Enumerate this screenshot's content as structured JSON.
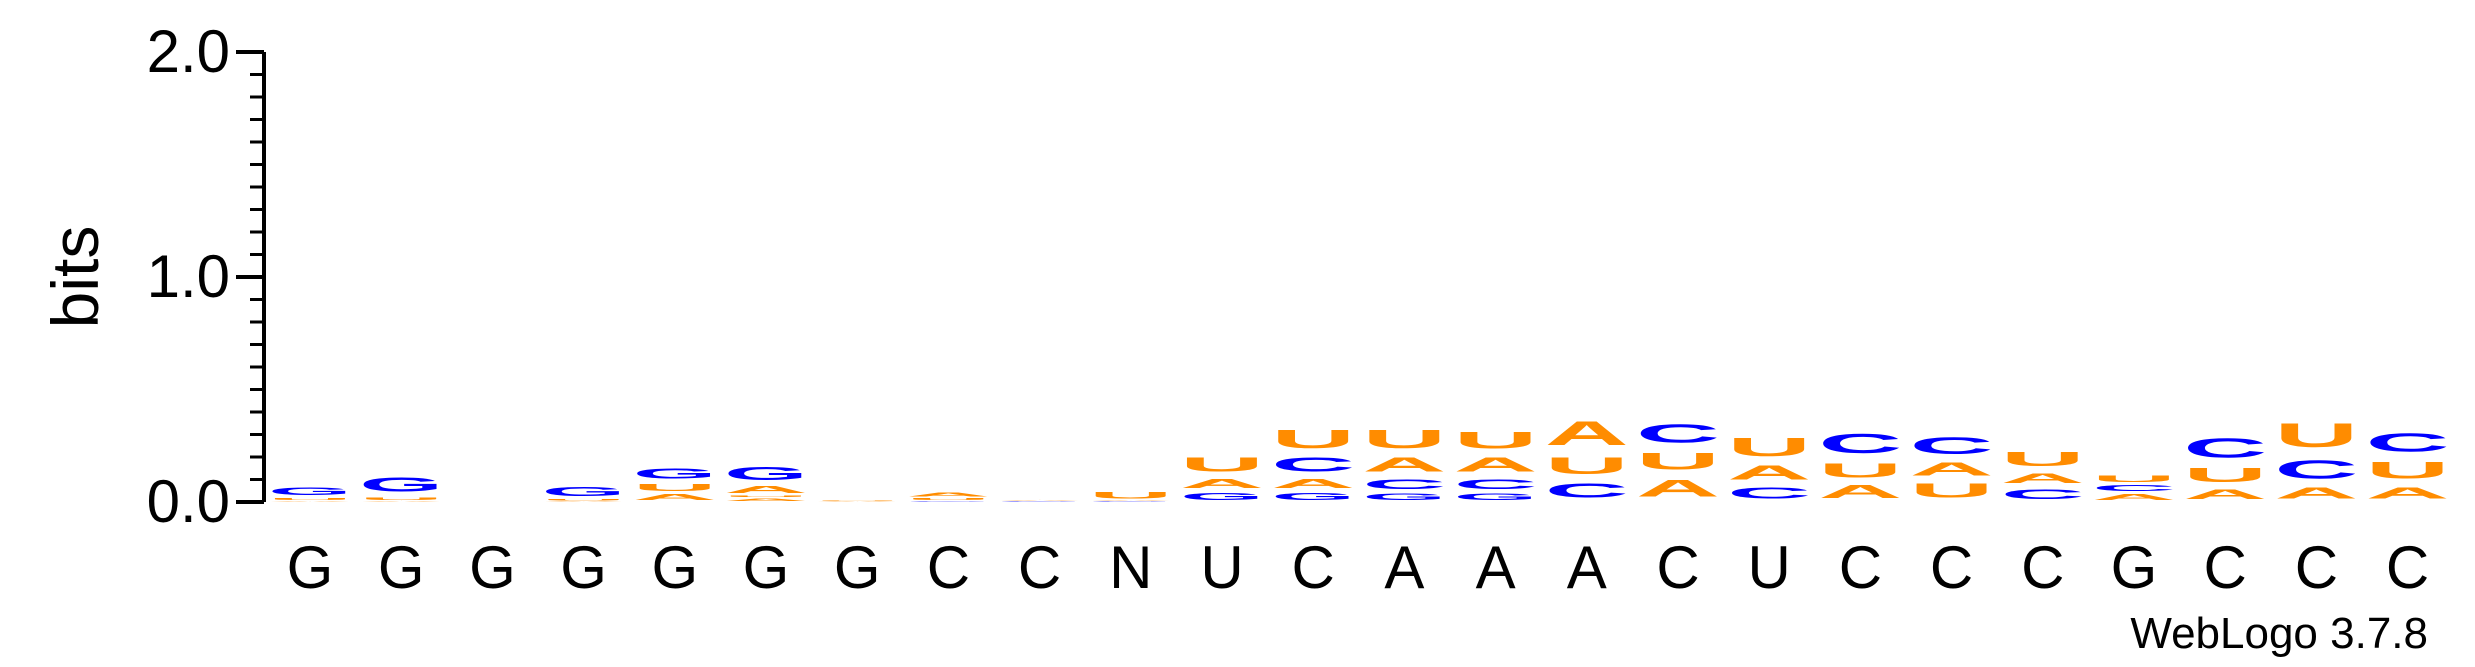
{
  "chart_data": {
    "type": "sequence-logo",
    "ylabel": "bits",
    "ylim": [
      0,
      2.0
    ],
    "y_ticks": [
      "0.0",
      "1.0",
      "2.0"
    ],
    "y_tick_values": [
      0,
      1,
      2
    ],
    "colors": {
      "A": "#FF8C00",
      "U": "#FF8C00",
      "G": "#0000FF",
      "C": "#0000FF",
      "N": "#000000"
    },
    "consensus": [
      "G",
      "G",
      "G",
      "G",
      "G",
      "G",
      "G",
      "C",
      "C",
      "N",
      "U",
      "C",
      "A",
      "A",
      "A",
      "C",
      "U",
      "C",
      "C",
      "C",
      "G",
      "C",
      "C",
      "C"
    ],
    "stacks": [
      [
        [
          "A",
          0.005
        ],
        [
          "U",
          0.015
        ],
        [
          "G",
          0.055
        ]
      ],
      [
        [
          "A",
          0.006
        ],
        [
          "U",
          0.02
        ],
        [
          "G",
          0.1
        ]
      ],
      [],
      [
        [
          "A",
          0.004
        ],
        [
          "U",
          0.01
        ],
        [
          "G",
          0.065
        ]
      ],
      [
        [
          "A",
          0.04
        ],
        [
          "U",
          0.05
        ],
        [
          "G",
          0.075
        ]
      ],
      [
        [
          "A",
          0.02
        ],
        [
          "U",
          0.01
        ],
        [
          "A",
          0.05
        ],
        [
          "G",
          0.09
        ]
      ],
      [
        [
          "A",
          0.005
        ],
        [
          "U",
          0.005
        ]
      ],
      [
        [
          "G",
          0.005
        ],
        [
          "U",
          0.015
        ],
        [
          "A",
          0.025
        ]
      ],
      [
        [
          "G",
          0.005
        ],
        [
          "A",
          0.006
        ]
      ],
      [
        [
          "G",
          0.003
        ],
        [
          "A",
          0.004
        ],
        [
          "U",
          0.045
        ]
      ],
      [
        [
          "G",
          0.05
        ],
        [
          "A",
          0.065
        ],
        [
          "U",
          0.1
        ]
      ],
      [
        [
          "G",
          0.05
        ],
        [
          "A",
          0.065
        ],
        [
          "C",
          0.1
        ],
        [
          "U",
          0.13
        ]
      ],
      [
        [
          "G",
          0.045
        ],
        [
          "C",
          0.07
        ],
        [
          "A",
          0.1
        ],
        [
          "U",
          0.13
        ]
      ],
      [
        [
          "G",
          0.045
        ],
        [
          "C",
          0.07
        ],
        [
          "A",
          0.1
        ],
        [
          "U",
          0.12
        ]
      ],
      [
        [
          "C",
          0.1
        ],
        [
          "U",
          0.12
        ],
        [
          "A",
          0.17
        ]
      ],
      [
        [
          "A",
          0.12
        ],
        [
          "U",
          0.12
        ],
        [
          "C",
          0.13
        ]
      ],
      [
        [
          "C",
          0.08
        ],
        [
          "A",
          0.1
        ],
        [
          "U",
          0.13
        ]
      ],
      [
        [
          "A",
          0.09
        ],
        [
          "U",
          0.1
        ],
        [
          "C",
          0.14
        ]
      ],
      [
        [
          "U",
          0.1
        ],
        [
          "A",
          0.09
        ],
        [
          "C",
          0.12
        ]
      ],
      [
        [
          "C",
          0.07
        ],
        [
          "A",
          0.07
        ],
        [
          "U",
          0.1
        ]
      ],
      [
        [
          "A",
          0.04
        ],
        [
          "C",
          0.04
        ],
        [
          "U",
          0.045
        ]
      ],
      [
        [
          "A",
          0.07
        ],
        [
          "U",
          0.1
        ],
        [
          "C",
          0.14
        ]
      ],
      [
        [
          "A",
          0.08
        ],
        [
          "C",
          0.13
        ],
        [
          "U",
          0.17
        ]
      ],
      [
        [
          "A",
          0.08
        ],
        [
          "U",
          0.12
        ],
        [
          "C",
          0.13
        ]
      ]
    ]
  },
  "credit": "WebLogo 3.7.8"
}
